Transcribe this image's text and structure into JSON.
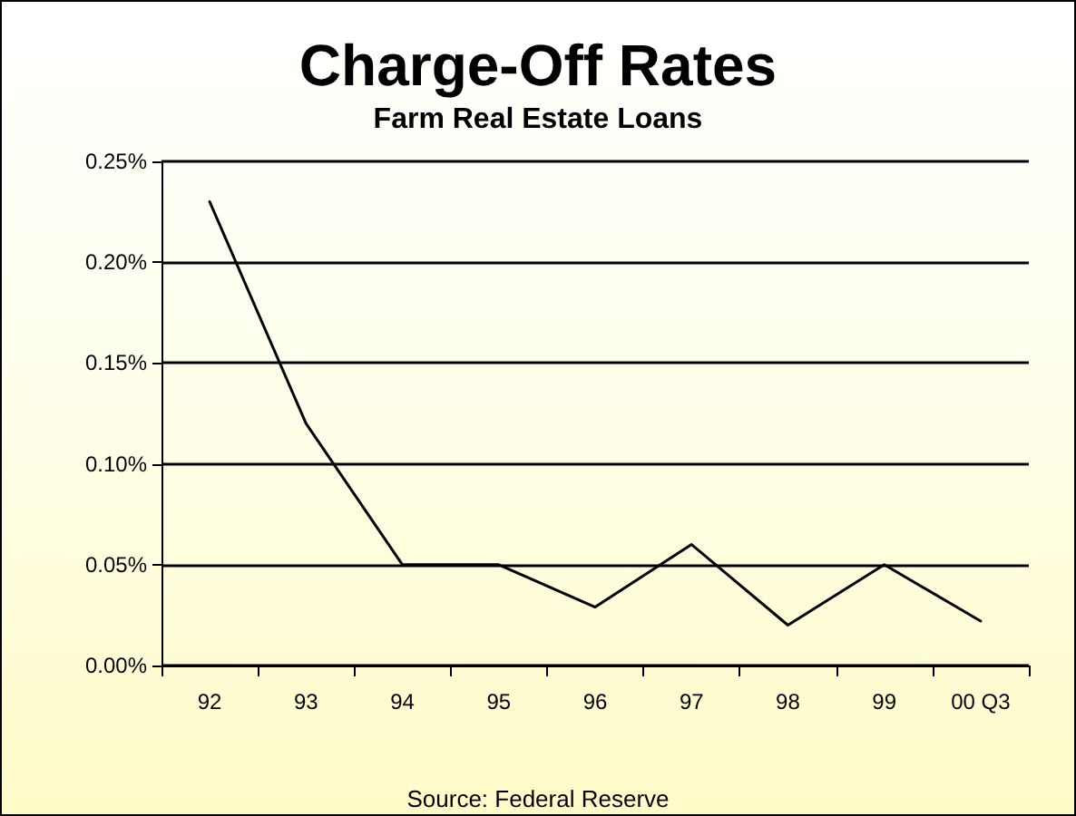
{
  "chart_data": {
    "type": "line",
    "title": "Charge-Off Rates",
    "subtitle": "Farm Real Estate Loans",
    "categories": [
      "92",
      "93",
      "94",
      "95",
      "96",
      "97",
      "98",
      "99",
      "00 Q3"
    ],
    "series": [
      {
        "color": "#000000",
        "values": [
          0.23,
          0.12,
          0.05,
          0.05,
          0.029,
          0.06,
          0.02,
          0.05,
          0.022
        ]
      }
    ],
    "ylim": [
      0,
      0.25
    ],
    "yticks": [
      {
        "value": 0,
        "label": "0.00%"
      },
      {
        "value": 0.05,
        "label": "0.05%"
      },
      {
        "value": 0.1,
        "label": "0.10%"
      },
      {
        "value": 0.15,
        "label": "0.15%"
      },
      {
        "value": 0.2,
        "label": "0.20%"
      },
      {
        "value": 0.25,
        "label": "0.25%"
      }
    ],
    "grid": "y",
    "marker": "none",
    "line_style": "solid",
    "annotations": [
      "Source: Federal Reserve"
    ]
  }
}
